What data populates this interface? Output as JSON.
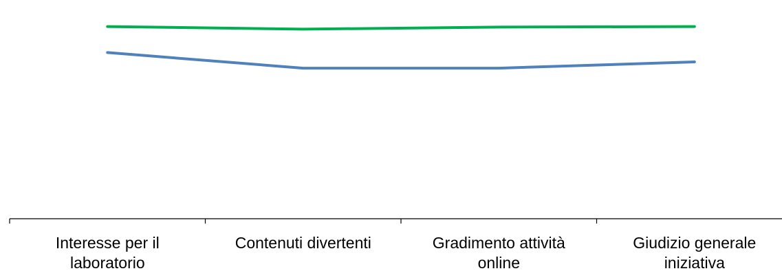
{
  "chart_data": {
    "type": "line",
    "categories": [
      [
        "Interesse per il",
        "laboratorio"
      ],
      [
        "Contenuti divertenti"
      ],
      [
        "Gradimento attività",
        "online"
      ],
      [
        "Giudizio generale",
        "iniziativa"
      ]
    ],
    "series": [
      {
        "color": "#00B050",
        "values": [
          4.7,
          4.65,
          4.69,
          4.7
        ]
      },
      {
        "color": "#4F81BD",
        "values": [
          4.2,
          3.9,
          3.9,
          4.02
        ]
      }
    ],
    "ylim": [
      1,
      5
    ],
    "grid": false,
    "legend": "none",
    "title": "",
    "xlabel": "",
    "ylabel": ""
  }
}
